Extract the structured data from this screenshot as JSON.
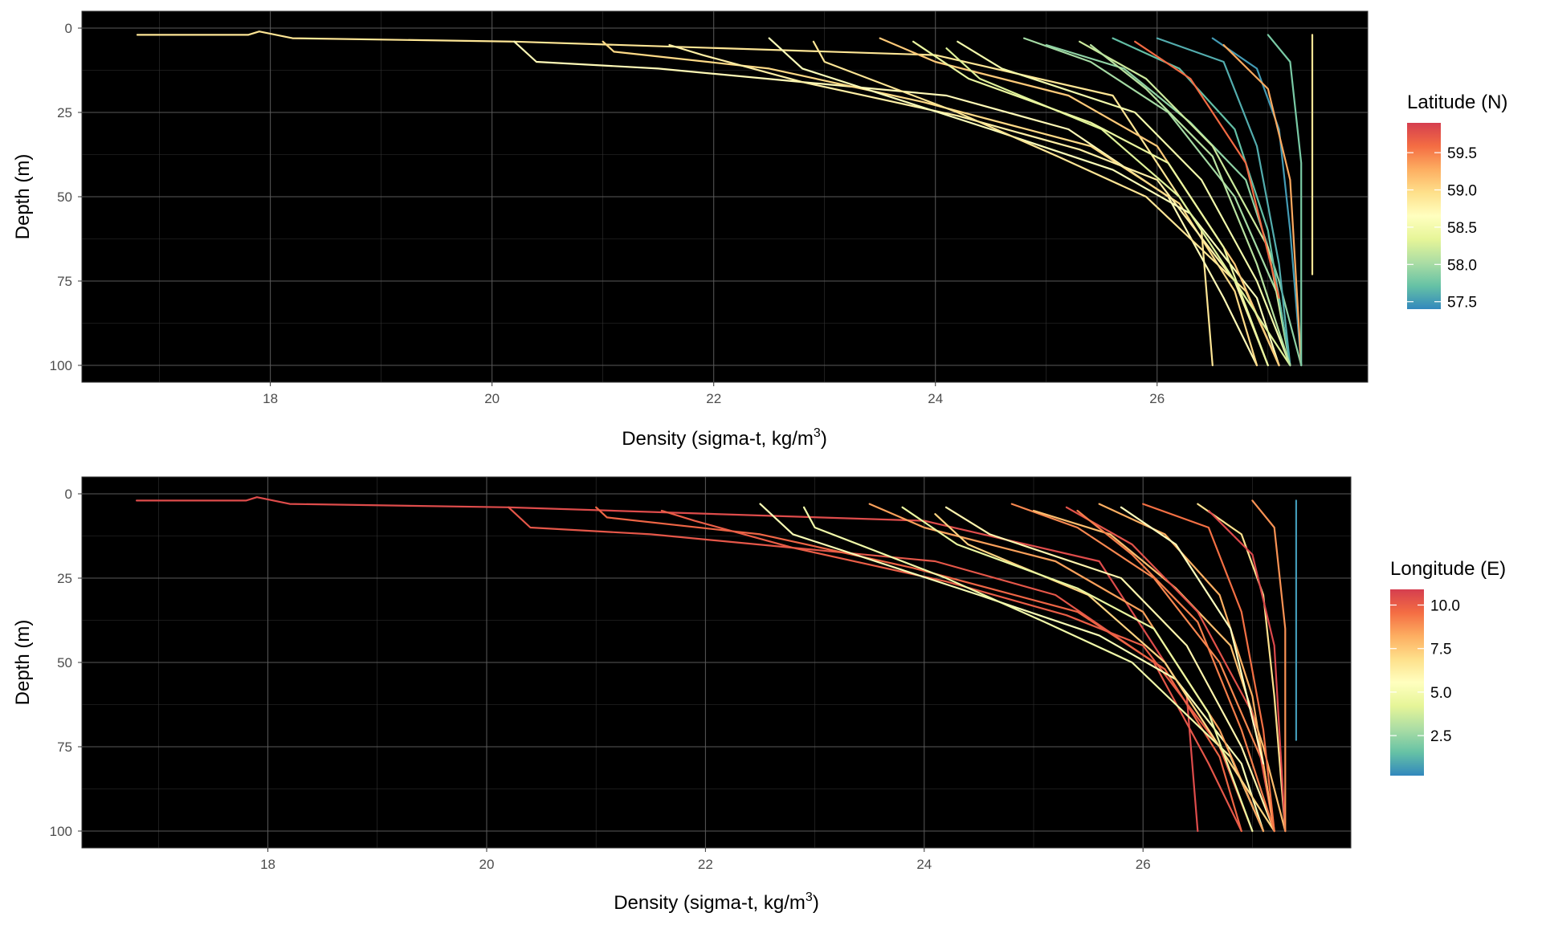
{
  "chart_data": [
    {
      "type": "line",
      "xlabel": "Density (sigma-t, kg/m",
      "xlabel_sup": "3",
      "xlabel_end": ")",
      "ylabel": "Depth (m)",
      "xlim": [
        16.3,
        27.9
      ],
      "ylim": [
        105,
        -5
      ],
      "y_reversed": true,
      "x_ticks": [
        18,
        20,
        22,
        24,
        26
      ],
      "x_tick_labels": [
        "18",
        "20",
        "22",
        "24",
        "26"
      ],
      "y_ticks": [
        0,
        25,
        50,
        75,
        100
      ],
      "y_tick_labels": [
        "0",
        "25",
        "50",
        "75",
        "100"
      ],
      "background": "#000000",
      "grid": true,
      "legend": {
        "title": "Latitude (N)",
        "position": "right",
        "range": [
          57.4,
          59.9
        ],
        "breaks": [
          59.5,
          59.0,
          58.5,
          58.0,
          57.5
        ],
        "break_labels": [
          "59.5",
          "59.0",
          "58.5",
          "58.0",
          "57.5"
        ],
        "colors": [
          "#d53e4f",
          "#f46d43",
          "#fdae61",
          "#fee08b",
          "#ffffbf",
          "#e6f598",
          "#abdda4",
          "#66c2a5",
          "#3288bd"
        ]
      },
      "series": [
        {
          "color_value": 58.9,
          "x": [
            16.8,
            17.8,
            17.9,
            18.2,
            20.2,
            24.0,
            25.6,
            26.4,
            26.5
          ],
          "y": [
            2,
            2,
            1,
            3,
            4,
            8,
            20,
            60,
            100
          ]
        },
        {
          "color_value": 58.7,
          "x": [
            20.2,
            20.4,
            21.5,
            24.1,
            25.2,
            26.1,
            26.6,
            26.9
          ],
          "y": [
            4,
            10,
            12,
            20,
            30,
            50,
            80,
            100
          ]
        },
        {
          "color_value": 59.0,
          "x": [
            21.0,
            21.1,
            22.5,
            23.9,
            25.4,
            26.2,
            26.7,
            26.9
          ],
          "y": [
            4,
            7,
            12,
            22,
            35,
            52,
            78,
            100
          ]
        },
        {
          "color_value": 58.8,
          "x": [
            21.6,
            21.9,
            22.8,
            24.2,
            25.3,
            26.0,
            26.7,
            27.0
          ],
          "y": [
            5,
            8,
            16,
            26,
            36,
            45,
            75,
            100
          ]
        },
        {
          "color_value": 58.6,
          "x": [
            22.5,
            22.8,
            24.5,
            25.6,
            26.3,
            26.9,
            27.1
          ],
          "y": [
            3,
            12,
            30,
            42,
            55,
            80,
            100
          ]
        },
        {
          "color_value": 58.9,
          "x": [
            22.9,
            23.0,
            24.2,
            25.1,
            25.9,
            26.8,
            27.1
          ],
          "y": [
            4,
            10,
            25,
            38,
            50,
            78,
            100
          ]
        },
        {
          "color_value": 59.1,
          "x": [
            23.5,
            24.0,
            25.2,
            26.0,
            26.7,
            27.1
          ],
          "y": [
            3,
            10,
            20,
            35,
            70,
            100
          ]
        },
        {
          "color_value": 58.5,
          "x": [
            24.2,
            24.6,
            25.8,
            26.4,
            26.9,
            27.2
          ],
          "y": [
            4,
            12,
            25,
            45,
            75,
            100
          ]
        },
        {
          "color_value": 58.3,
          "x": [
            24.1,
            24.4,
            25.5,
            26.2,
            26.8,
            27.2
          ],
          "y": [
            6,
            15,
            30,
            50,
            80,
            100
          ]
        },
        {
          "color_value": 58.0,
          "x": [
            24.8,
            25.4,
            26.1,
            26.7,
            27.1,
            27.2
          ],
          "y": [
            3,
            10,
            25,
            50,
            80,
            100
          ]
        },
        {
          "color_value": 57.9,
          "x": [
            25.0,
            25.7,
            26.3,
            26.8,
            27.1,
            27.3
          ],
          "y": [
            5,
            12,
            28,
            45,
            75,
            100
          ]
        },
        {
          "color_value": 58.2,
          "x": [
            25.3,
            25.9,
            26.5,
            27.0,
            27.2
          ],
          "y": [
            4,
            15,
            35,
            65,
            100
          ]
        },
        {
          "color_value": 57.7,
          "x": [
            25.6,
            26.2,
            26.7,
            27.0,
            27.2
          ],
          "y": [
            3,
            12,
            30,
            60,
            100
          ]
        },
        {
          "color_value": 57.6,
          "x": [
            26.0,
            26.6,
            26.9,
            27.1,
            27.2
          ],
          "y": [
            3,
            10,
            35,
            70,
            100
          ]
        },
        {
          "color_value": 57.5,
          "x": [
            26.5,
            26.9,
            27.1,
            27.2,
            27.3
          ],
          "y": [
            3,
            12,
            30,
            60,
            100
          ]
        },
        {
          "color_value": 59.6,
          "x": [
            25.8,
            26.3,
            26.8,
            27.1
          ],
          "y": [
            4,
            15,
            40,
            80
          ]
        },
        {
          "color_value": 59.3,
          "x": [
            26.6,
            27.0,
            27.2,
            27.3
          ],
          "y": [
            5,
            18,
            45,
            100
          ]
        },
        {
          "color_value": 57.8,
          "x": [
            27.0,
            27.2,
            27.3,
            27.3
          ],
          "y": [
            2,
            10,
            40,
            100
          ]
        },
        {
          "color_value": 58.4,
          "x": [
            23.8,
            24.3,
            25.4,
            26.1,
            26.6,
            27.0
          ],
          "y": [
            4,
            15,
            28,
            40,
            65,
            100
          ]
        },
        {
          "color_value": 58.1,
          "x": [
            25.4,
            25.9,
            26.5,
            26.9,
            27.2
          ],
          "y": [
            5,
            18,
            38,
            70,
            100
          ]
        },
        {
          "color_value": 58.9,
          "x": [
            27.4,
            27.4,
            27.4,
            27.4
          ],
          "y": [
            2,
            30,
            60,
            73
          ]
        }
      ]
    },
    {
      "type": "line",
      "xlabel": "Density (sigma-t, kg/m",
      "xlabel_sup": "3",
      "xlabel_end": ")",
      "ylabel": "Depth (m)",
      "xlim": [
        16.3,
        27.9
      ],
      "ylim": [
        105,
        -5
      ],
      "y_reversed": true,
      "x_ticks": [
        18,
        20,
        22,
        24,
        26
      ],
      "x_tick_labels": [
        "18",
        "20",
        "22",
        "24",
        "26"
      ],
      "y_ticks": [
        0,
        25,
        50,
        75,
        100
      ],
      "y_tick_labels": [
        "0",
        "25",
        "50",
        "75",
        "100"
      ],
      "background": "#000000",
      "grid": true,
      "legend": {
        "title": "Longitude (E)",
        "position": "right",
        "range": [
          0.2,
          10.9
        ],
        "breaks": [
          10.0,
          7.5,
          5.0,
          2.5
        ],
        "break_labels": [
          "10.0",
          "7.5",
          "5.0",
          "2.5"
        ],
        "colors": [
          "#d53e4f",
          "#f46d43",
          "#fdae61",
          "#fee08b",
          "#ffffbf",
          "#e6f598",
          "#abdda4",
          "#66c2a5",
          "#3288bd"
        ]
      },
      "series": [
        {
          "color_value": 10.5,
          "x": [
            16.8,
            17.8,
            17.9,
            18.2,
            20.2,
            24.0,
            25.6,
            26.4,
            26.5
          ],
          "y": [
            2,
            2,
            1,
            3,
            4,
            8,
            20,
            60,
            100
          ]
        },
        {
          "color_value": 10.2,
          "x": [
            20.2,
            20.4,
            21.5,
            24.1,
            25.2,
            26.1,
            26.6,
            26.9
          ],
          "y": [
            4,
            10,
            12,
            20,
            30,
            50,
            80,
            100
          ]
        },
        {
          "color_value": 9.8,
          "x": [
            21.0,
            21.1,
            22.5,
            23.9,
            25.4,
            26.2,
            26.7,
            26.9
          ],
          "y": [
            4,
            7,
            12,
            22,
            35,
            52,
            78,
            100
          ]
        },
        {
          "color_value": 10.0,
          "x": [
            21.6,
            21.9,
            22.8,
            24.2,
            25.3,
            26.0,
            26.7,
            27.0
          ],
          "y": [
            5,
            8,
            16,
            26,
            36,
            45,
            75,
            100
          ]
        },
        {
          "color_value": 5.2,
          "x": [
            22.5,
            22.8,
            24.5,
            25.6,
            26.3,
            26.9,
            27.1
          ],
          "y": [
            3,
            12,
            30,
            42,
            55,
            80,
            100
          ]
        },
        {
          "color_value": 4.8,
          "x": [
            22.9,
            23.0,
            24.2,
            25.1,
            25.9,
            26.8,
            27.1
          ],
          "y": [
            4,
            10,
            25,
            38,
            50,
            78,
            100
          ]
        },
        {
          "color_value": 8.5,
          "x": [
            23.5,
            24.0,
            25.2,
            26.0,
            26.7,
            27.1
          ],
          "y": [
            3,
            10,
            20,
            35,
            70,
            100
          ]
        },
        {
          "color_value": 6.0,
          "x": [
            24.2,
            24.6,
            25.8,
            26.4,
            26.9,
            27.2
          ],
          "y": [
            4,
            12,
            25,
            45,
            75,
            100
          ]
        },
        {
          "color_value": 7.2,
          "x": [
            24.1,
            24.4,
            25.5,
            26.2,
            26.8,
            27.2
          ],
          "y": [
            6,
            15,
            30,
            50,
            80,
            100
          ]
        },
        {
          "color_value": 9.0,
          "x": [
            24.8,
            25.4,
            26.1,
            26.7,
            27.1,
            27.2
          ],
          "y": [
            3,
            10,
            25,
            50,
            80,
            100
          ]
        },
        {
          "color_value": 7.8,
          "x": [
            25.0,
            25.7,
            26.3,
            26.8,
            27.1,
            27.3
          ],
          "y": [
            5,
            12,
            28,
            45,
            75,
            100
          ]
        },
        {
          "color_value": 10.3,
          "x": [
            25.3,
            25.9,
            26.5,
            27.0,
            27.2
          ],
          "y": [
            4,
            15,
            35,
            65,
            100
          ]
        },
        {
          "color_value": 8.2,
          "x": [
            25.6,
            26.2,
            26.7,
            27.0,
            27.2
          ],
          "y": [
            3,
            12,
            30,
            60,
            100
          ]
        },
        {
          "color_value": 9.5,
          "x": [
            26.0,
            26.6,
            26.9,
            27.1,
            27.2
          ],
          "y": [
            3,
            10,
            35,
            70,
            100
          ]
        },
        {
          "color_value": 6.8,
          "x": [
            26.5,
            26.9,
            27.1,
            27.2,
            27.3
          ],
          "y": [
            3,
            12,
            30,
            60,
            100
          ]
        },
        {
          "color_value": 5.5,
          "x": [
            25.8,
            26.3,
            26.8,
            27.1
          ],
          "y": [
            4,
            15,
            40,
            80
          ]
        },
        {
          "color_value": 10.6,
          "x": [
            26.6,
            27.0,
            27.2,
            27.3
          ],
          "y": [
            5,
            18,
            45,
            100
          ]
        },
        {
          "color_value": 8.8,
          "x": [
            27.0,
            27.2,
            27.3,
            27.3
          ],
          "y": [
            2,
            10,
            40,
            100
          ]
        },
        {
          "color_value": 4.5,
          "x": [
            23.8,
            24.3,
            25.4,
            26.1,
            26.6,
            27.0
          ],
          "y": [
            4,
            15,
            28,
            40,
            65,
            100
          ]
        },
        {
          "color_value": 9.2,
          "x": [
            25.4,
            25.9,
            26.5,
            26.9,
            27.2
          ],
          "y": [
            5,
            18,
            38,
            70,
            100
          ]
        },
        {
          "color_value": 0.6,
          "x": [
            27.4,
            27.4,
            27.4,
            27.4
          ],
          "y": [
            2,
            30,
            60,
            73
          ]
        }
      ]
    }
  ]
}
